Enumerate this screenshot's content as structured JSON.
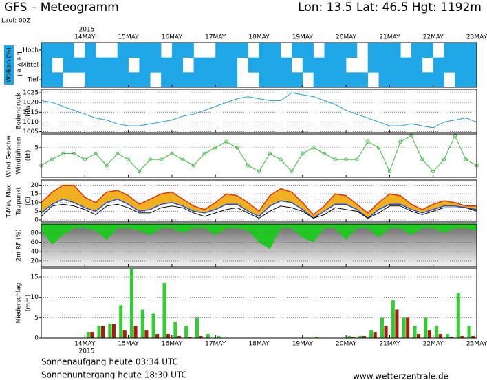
{
  "header": {
    "title": "GFS – Meteogramm",
    "location": "Lon: 13.5  Lat: 46.5  Hgt: 1192m",
    "run": "Lauf: 00Z"
  },
  "time_axis": {
    "year": "2015",
    "labels": [
      "14MAY",
      "15MAY",
      "16MAY",
      "17MAY",
      "18MAY",
      "19MAY",
      "20MAY",
      "21MAY",
      "22MAY",
      "23MAY"
    ]
  },
  "chart_data": [
    {
      "type": "heatmap",
      "y_label": "Wolken (%)",
      "level_label": "Level",
      "color": "#1ea6e6",
      "series": [
        {
          "name": "Hoch",
          "values": [
            100,
            100,
            100,
            0,
            100,
            0,
            0,
            100,
            100,
            100,
            100,
            0,
            100,
            100,
            0,
            0,
            100,
            100,
            100,
            0,
            100,
            100,
            0,
            100,
            100,
            0,
            100,
            100,
            100,
            0,
            100,
            100,
            100,
            0,
            100,
            100,
            0,
            100,
            100,
            100
          ]
        },
        {
          "name": "Mittel",
          "values": [
            100,
            0,
            100,
            100,
            100,
            100,
            100,
            100,
            0,
            100,
            100,
            100,
            100,
            0,
            100,
            100,
            100,
            100,
            0,
            100,
            100,
            100,
            100,
            0,
            100,
            100,
            100,
            100,
            0,
            0,
            100,
            100,
            100,
            100,
            100,
            0,
            100,
            100,
            100,
            100
          ]
        },
        {
          "name": "Tief",
          "values": [
            100,
            100,
            0,
            0,
            100,
            100,
            100,
            100,
            100,
            100,
            0,
            100,
            100,
            100,
            100,
            100,
            100,
            100,
            0,
            0,
            100,
            100,
            100,
            100,
            0,
            100,
            100,
            100,
            100,
            100,
            0,
            100,
            100,
            100,
            100,
            100,
            100,
            0,
            100,
            100
          ]
        }
      ]
    },
    {
      "type": "line",
      "y_labels": [
        "Bodendruck",
        "(hPa)"
      ],
      "color": "#1e9ad6",
      "ylim": [
        1004.5,
        1026.8
      ],
      "yticks": [
        1005,
        1010,
        1015,
        1020,
        1025
      ],
      "grid": true,
      "values": [
        1021,
        1020,
        1018,
        1016,
        1014,
        1012,
        1011,
        1009,
        1008,
        1008,
        1009,
        1010,
        1011,
        1013,
        1014,
        1016,
        1018,
        1020,
        1022,
        1023,
        1022,
        1021,
        1021,
        1025,
        1024,
        1023,
        1021,
        1019,
        1016,
        1014,
        1012,
        1010,
        1008,
        1008,
        1009,
        1008,
        1007,
        1010,
        1011,
        1012,
        1010
      ]
    },
    {
      "type": "line_markers",
      "y_labels": [
        "Wind Geschw.",
        "Windfahnen",
        "(kt)"
      ],
      "color": "#3cb83c",
      "ylim": [
        0,
        7.3
      ],
      "yticks": [
        5
      ],
      "grid": true,
      "values": [
        2,
        3,
        4,
        4,
        3,
        4,
        2,
        4,
        3,
        1,
        3,
        3,
        4,
        3,
        2,
        4,
        5,
        6,
        5,
        2,
        1,
        4,
        3,
        1,
        4,
        5,
        4,
        3,
        3,
        3,
        6,
        5,
        1,
        6,
        7,
        3,
        1,
        3,
        7,
        3,
        2
      ]
    },
    {
      "type": "band",
      "y_labels": [
        "T-Min, Max",
        "Taupunkt",
        "(C)"
      ],
      "band_color": "#f0b020",
      "ylim": [
        -1.2,
        23
      ],
      "yticks": [
        0,
        5,
        10,
        15,
        20
      ],
      "grid": true,
      "series": [
        {
          "name": "Max",
          "color": "#e03010",
          "values": [
            10,
            16,
            20,
            20,
            13,
            10,
            16,
            17,
            14,
            9,
            12,
            15,
            16,
            12,
            8,
            6,
            10,
            15,
            14,
            10,
            5,
            14,
            18,
            16,
            10,
            3,
            8,
            15,
            14,
            9,
            4,
            10,
            15,
            14,
            9,
            6,
            9,
            11,
            10,
            8,
            8
          ]
        },
        {
          "name": "Min",
          "color": "#2050e0",
          "values": [
            4,
            9,
            12,
            10,
            7,
            5,
            10,
            12,
            9,
            5,
            6,
            9,
            10,
            8,
            5,
            4,
            6,
            9,
            9,
            5,
            2,
            8,
            11,
            10,
            6,
            1,
            5,
            9,
            9,
            6,
            1,
            6,
            9,
            9,
            6,
            4,
            6,
            8,
            8,
            7,
            6
          ]
        },
        {
          "name": "Taupunkt",
          "color": "#000000",
          "values": [
            2,
            8,
            9,
            8,
            6,
            3,
            8,
            9,
            7,
            4,
            4,
            7,
            8,
            7,
            4,
            2,
            4,
            6,
            7,
            4,
            1,
            5,
            8,
            7,
            5,
            1,
            3,
            7,
            6,
            5,
            1,
            4,
            8,
            8,
            5,
            3,
            5,
            7,
            7,
            7,
            5
          ]
        }
      ]
    },
    {
      "type": "area_top",
      "y_label": "2m RF (%)",
      "color": "#22c822",
      "ylim": [
        8,
        99
      ],
      "yticks": [
        20,
        40,
        60,
        80
      ],
      "grid": true,
      "values": [
        85,
        55,
        75,
        90,
        90,
        85,
        65,
        90,
        90,
        85,
        75,
        90,
        90,
        80,
        90,
        90,
        75,
        90,
        90,
        85,
        60,
        45,
        90,
        90,
        70,
        60,
        90,
        90,
        65,
        90,
        90,
        70,
        90,
        90,
        75,
        90,
        90,
        80,
        90,
        90,
        85
      ]
    },
    {
      "type": "bars",
      "y_labels": [
        "Niederschlag",
        "(mm)"
      ],
      "ylim": [
        0,
        17.2
      ],
      "yticks": [
        0,
        5,
        10,
        15
      ],
      "grid": true,
      "series": [
        {
          "color": "#33cc33",
          "values": [
            0,
            0,
            0,
            0,
            1.5,
            3,
            3.5,
            8,
            17,
            7,
            6,
            13.5,
            4,
            3,
            5,
            1,
            0.5,
            0,
            0,
            0,
            0,
            0,
            0,
            0,
            0,
            0.3,
            0,
            0,
            0.5,
            0.5,
            2,
            5,
            9.3,
            5,
            3,
            5,
            3,
            1,
            11,
            3
          ]
        },
        {
          "color": "#a02010",
          "values": [
            0,
            0,
            0,
            0,
            1.5,
            3,
            3.5,
            2,
            3,
            2,
            1,
            1,
            0.5,
            0.3,
            0.5,
            0,
            0,
            0,
            0,
            0,
            0,
            0,
            0,
            0,
            0,
            0,
            0,
            0,
            0.3,
            0.5,
            1.5,
            3,
            7,
            5,
            1,
            2,
            1,
            0.3,
            0.5,
            0.5
          ]
        }
      ]
    }
  ],
  "footer": {
    "sunrise": "Sonnenaufgang heute 03:34 UTC",
    "sunset": "Sonnenuntergang heute 18:30 UTC",
    "source": "www.wetterzentrale.de"
  }
}
